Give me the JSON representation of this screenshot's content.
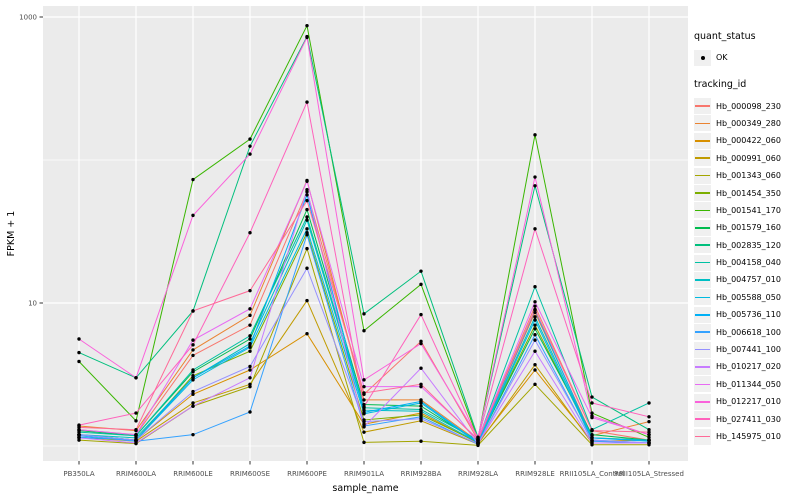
{
  "chart_data": {
    "type": "line",
    "title": "",
    "xlabel": "sample_name",
    "ylabel": "FPKM + 1",
    "x_scale": "discrete",
    "y_scale": "log10",
    "y_breaks": [
      10,
      1000
    ],
    "y_gridlines": [
      1,
      10,
      100,
      1000
    ],
    "ylim": [
      0.95,
      1100
    ],
    "grid": "on",
    "legend_position": "right",
    "panel_background": "#EBEBEB",
    "gridline_color": "#FFFFFF",
    "axis_text_color": "#4D4D4D",
    "point_color": "#000000",
    "point_shape": "circle",
    "categories": [
      "PB350LA",
      "RRIM600LA",
      "RRIM600LE",
      "RRIM600SE",
      "RRIM600PE",
      "RRIM901LA",
      "RRIM928BA",
      "RRIM928LA",
      "RRIM928LE",
      "RRII105LA_Control",
      "RRII105LA_Stressed"
    ],
    "series": [
      {
        "name": "Hb_000098_230",
        "color": "#F8766D",
        "values": [
          1.3,
          1.2,
          4.3,
          7.0,
          60,
          2.3,
          5.4,
          1.1,
          9.5,
          1.28,
          1.1
        ]
      },
      {
        "name": "Hb_000349_280",
        "color": "#EA8331",
        "values": [
          1.38,
          1.28,
          4.7,
          8.2,
          72,
          2.1,
          2.1,
          1.08,
          8.6,
          1.18,
          1.48
        ]
      },
      {
        "name": "Hb_000422_060",
        "color": "#D89000",
        "values": [
          1.2,
          1.1,
          2.3,
          3.4,
          6.1,
          1.42,
          1.7,
          1.05,
          3.4,
          1.08,
          1.1
        ]
      },
      {
        "name": "Hb_000991_060",
        "color": "#C09B00",
        "values": [
          1.15,
          1.08,
          2.0,
          2.7,
          10.4,
          1.25,
          1.5,
          1.03,
          3.7,
          1.05,
          1.05
        ]
      },
      {
        "name": "Hb_001343_060",
        "color": "#A3A500",
        "values": [
          1.1,
          1.04,
          1.9,
          2.6,
          24,
          1.06,
          1.08,
          1.01,
          2.7,
          1.02,
          1.02
        ]
      },
      {
        "name": "Hb_001454_350",
        "color": "#7CAE00",
        "values": [
          1.2,
          1.1,
          3.1,
          4.6,
          31,
          1.52,
          1.65,
          1.06,
          7.0,
          1.14,
          1.1
        ]
      },
      {
        "name": "Hb_001541_170",
        "color": "#39B600",
        "values": [
          3.9,
          1.5,
          73,
          140,
          870,
          6.4,
          13.5,
          1.12,
          150,
          1.7,
          1.15
        ]
      },
      {
        "name": "Hb_001579_160",
        "color": "#00BB4E",
        "values": [
          1.28,
          1.18,
          3.3,
          5.6,
          45,
          1.95,
          1.9,
          1.07,
          6.6,
          1.2,
          1.1
        ]
      },
      {
        "name": "Hb_002835_120",
        "color": "#00BF7D",
        "values": [
          4.5,
          3.0,
          8.8,
          125,
          730,
          8.4,
          16.7,
          1.15,
          66,
          2.2,
          1.3
        ]
      },
      {
        "name": "Hb_004158_040",
        "color": "#00C1A3",
        "values": [
          1.25,
          1.18,
          3.4,
          5.9,
          40,
          1.85,
          1.8,
          1.1,
          13,
          1.3,
          2.0
        ]
      },
      {
        "name": "Hb_004757_010",
        "color": "#00BFC4",
        "values": [
          1.2,
          1.14,
          3.0,
          5.2,
          38,
          1.78,
          1.75,
          1.06,
          8.0,
          1.14,
          1.1
        ]
      },
      {
        "name": "Hb_005588_050",
        "color": "#00BAE0",
        "values": [
          1.2,
          1.1,
          2.9,
          4.9,
          33,
          1.68,
          2.0,
          1.05,
          7.6,
          1.1,
          1.05
        ]
      },
      {
        "name": "Hb_005736_110",
        "color": "#00B0F6",
        "values": [
          1.15,
          1.1,
          3.0,
          5.0,
          57,
          1.72,
          2.05,
          1.06,
          8.9,
          1.14,
          1.08
        ]
      },
      {
        "name": "Hb_006618_100",
        "color": "#35A2FF",
        "values": [
          1.18,
          1.08,
          1.2,
          1.73,
          30,
          1.38,
          1.6,
          1.03,
          6.0,
          1.08,
          1.05
        ]
      },
      {
        "name": "Hb_007441_100",
        "color": "#9590FF",
        "values": [
          1.2,
          1.1,
          2.4,
          3.6,
          17.5,
          1.48,
          1.55,
          1.04,
          5.5,
          1.1,
          1.05
        ]
      },
      {
        "name": "Hb_010217_020",
        "color": "#C77CFF",
        "values": [
          1.14,
          1.05,
          1.9,
          3.0,
          62,
          1.36,
          3.5,
          1.04,
          4.6,
          1.05,
          1.05
        ]
      },
      {
        "name": "Hb_011344_050",
        "color": "#E76BF3",
        "values": [
          1.3,
          1.2,
          5.5,
          9.1,
          71,
          2.6,
          2.6,
          1.12,
          10.2,
          1.58,
          1.2
        ]
      },
      {
        "name": "Hb_012217_010",
        "color": "#FA62DB",
        "values": [
          5.6,
          3.0,
          41,
          110,
          720,
          2.9,
          5.2,
          1.15,
          76,
          1.62,
          1.2
        ]
      },
      {
        "name": "Hb_027411_030",
        "color": "#FF62BC",
        "values": [
          1.4,
          1.7,
          5.1,
          31,
          254,
          1.88,
          8.3,
          1.12,
          33,
          2.0,
          1.6
        ]
      },
      {
        "name": "Hb_145975_010",
        "color": "#FF6A98",
        "values": [
          1.35,
          1.3,
          8.8,
          12.2,
          52,
          2.35,
          2.7,
          1.1,
          9.0,
          1.28,
          1.25
        ]
      }
    ]
  },
  "legend": {
    "quant_status": {
      "title": "quant_status",
      "items": [
        {
          "label": "OK",
          "symbol": "point",
          "color": "#000000"
        }
      ]
    },
    "tracking_id": {
      "title": "tracking_id"
    },
    "key_background": "#F0F0F0"
  }
}
